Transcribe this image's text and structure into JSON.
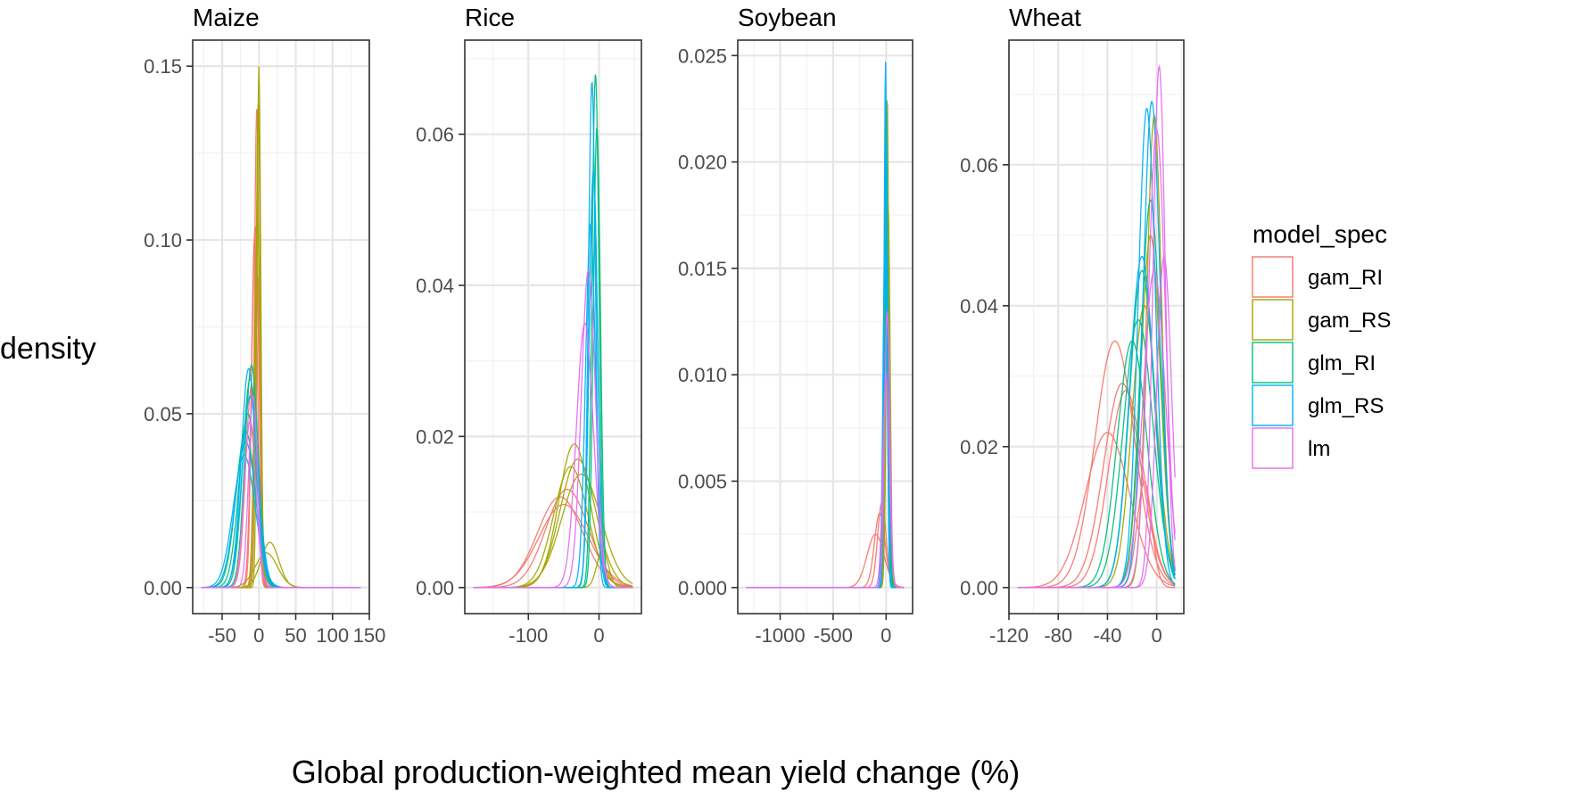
{
  "chart_data": {
    "type": "density",
    "ylabel": "density",
    "xlabel": "Global production-weighted mean yield change (%)",
    "legend": {
      "title": "model_spec",
      "position": "right",
      "entries": [
        {
          "name": "gam_RI",
          "color": "#F8766D"
        },
        {
          "name": "gam_RS",
          "color": "#A3A500"
        },
        {
          "name": "glm_RI",
          "color": "#00BF7D"
        },
        {
          "name": "glm_RS",
          "color": "#00B0F6"
        },
        {
          "name": "lm",
          "color": "#E76BF3"
        }
      ]
    },
    "panels": [
      {
        "title": "Maize",
        "xlim": [
          -90,
          150
        ],
        "ylim": [
          -0.0075,
          0.1575
        ],
        "xticks": [
          -50,
          0,
          50,
          100,
          150
        ],
        "xtick_labels": [
          "-50",
          "0",
          "50",
          "100",
          "150"
        ],
        "yticks": [
          0,
          0.05,
          0.1,
          0.15
        ],
        "ytick_labels": [
          "0.00",
          "0.05",
          "0.10",
          "0.15"
        ],
        "curves": [
          {
            "spec": "gam_RI",
            "color": "#F8766D",
            "mu": -5,
            "sd": 5,
            "peak": 0.104
          },
          {
            "spec": "gam_RI",
            "color": "#F8766D",
            "mu": -3,
            "sd": 3,
            "peak": 0.138
          },
          {
            "spec": "gam_RI",
            "color": "#F8766D",
            "mu": -6,
            "sd": 4,
            "peak": 0.1
          },
          {
            "spec": "gam_RI",
            "color": "#F8766D",
            "mu": -10,
            "sd": 8,
            "peak": 0.058
          },
          {
            "spec": "gam_RI",
            "color": "#F8766D",
            "mu": -2,
            "sd": 3,
            "peak": 0.09
          },
          {
            "spec": "gam_RS",
            "color": "#A3A500",
            "mu": 0,
            "sd": 2.5,
            "peak": 0.15
          },
          {
            "spec": "gam_RS",
            "color": "#A3A500",
            "mu": -1,
            "sd": 3,
            "peak": 0.14
          },
          {
            "spec": "gam_RS",
            "color": "#A3A500",
            "mu": -2,
            "sd": 4,
            "peak": 0.106
          },
          {
            "spec": "gam_RS",
            "color": "#A3A500",
            "mu": 15,
            "sd": 12,
            "peak": 0.013
          },
          {
            "spec": "gam_RS",
            "color": "#A3A500",
            "mu": 10,
            "sd": 15,
            "peak": 0.01
          },
          {
            "spec": "glm_RI",
            "color": "#00BF7D",
            "mu": -12,
            "sd": 10,
            "peak": 0.06
          },
          {
            "spec": "glm_RI",
            "color": "#00BF7D",
            "mu": -15,
            "sd": 12,
            "peak": 0.05
          },
          {
            "spec": "glm_RI",
            "color": "#00BF7D",
            "mu": -10,
            "sd": 9,
            "peak": 0.064
          },
          {
            "spec": "glm_RI",
            "color": "#00BF7D",
            "mu": -18,
            "sd": 13,
            "peak": 0.045
          },
          {
            "spec": "glm_RS",
            "color": "#00B0F6",
            "mu": -14,
            "sd": 10,
            "peak": 0.063
          },
          {
            "spec": "glm_RS",
            "color": "#00B0F6",
            "mu": -18,
            "sd": 14,
            "peak": 0.042
          },
          {
            "spec": "glm_RS",
            "color": "#00B0F6",
            "mu": -12,
            "sd": 11,
            "peak": 0.055
          },
          {
            "spec": "glm_RS",
            "color": "#00B0F6",
            "mu": -20,
            "sd": 15,
            "peak": 0.038
          },
          {
            "spec": "lm",
            "color": "#E76BF3",
            "mu": -8,
            "sd": 6,
            "peak": 0.055
          },
          {
            "spec": "lm",
            "color": "#E76BF3",
            "mu": -12,
            "sd": 8,
            "peak": 0.048
          }
        ]
      },
      {
        "title": "Rice",
        "xlim": [
          -190,
          60
        ],
        "ylim": [
          -0.00345,
          0.07245
        ],
        "xticks": [
          -100,
          0
        ],
        "xtick_labels": [
          "-100",
          "0"
        ],
        "yticks": [
          0,
          0.02,
          0.04,
          0.06
        ],
        "ytick_labels": [
          "0.00",
          "0.02",
          "0.04",
          "0.06"
        ],
        "curves": [
          {
            "spec": "gam_RI",
            "color": "#F8766D",
            "mu": -45,
            "sd": 30,
            "peak": 0.013
          },
          {
            "spec": "gam_RI",
            "color": "#F8766D",
            "mu": -50,
            "sd": 35,
            "peak": 0.011
          },
          {
            "spec": "gam_RI",
            "color": "#F8766D",
            "mu": -55,
            "sd": 32,
            "peak": 0.012
          },
          {
            "spec": "gam_RS",
            "color": "#A3A500",
            "mu": -35,
            "sd": 22,
            "peak": 0.019
          },
          {
            "spec": "gam_RS",
            "color": "#A3A500",
            "mu": -30,
            "sd": 25,
            "peak": 0.017
          },
          {
            "spec": "gam_RS",
            "color": "#A3A500",
            "mu": -40,
            "sd": 24,
            "peak": 0.016
          },
          {
            "spec": "gam_RS",
            "color": "#A3A500",
            "mu": -25,
            "sd": 28,
            "peak": 0.015
          },
          {
            "spec": "gam_RS",
            "color": "#A3A500",
            "mu": 5,
            "sd": 8,
            "peak": 0.005
          },
          {
            "spec": "glm_RI",
            "color": "#00BF7D",
            "mu": -5,
            "sd": 5,
            "peak": 0.068
          },
          {
            "spec": "glm_RI",
            "color": "#00BF7D",
            "mu": -3,
            "sd": 5,
            "peak": 0.061
          },
          {
            "spec": "glm_RI",
            "color": "#00BF7D",
            "mu": -8,
            "sd": 6,
            "peak": 0.055
          },
          {
            "spec": "glm_RS",
            "color": "#00B0F6",
            "mu": -10,
            "sd": 5,
            "peak": 0.067
          },
          {
            "spec": "glm_RS",
            "color": "#00B0F6",
            "mu": -8,
            "sd": 6,
            "peak": 0.055
          },
          {
            "spec": "glm_RS",
            "color": "#00B0F6",
            "mu": -12,
            "sd": 7,
            "peak": 0.048
          },
          {
            "spec": "lm",
            "color": "#E76BF3",
            "mu": -15,
            "sd": 10,
            "peak": 0.042
          },
          {
            "spec": "lm",
            "color": "#E76BF3",
            "mu": -20,
            "sd": 12,
            "peak": 0.035
          }
        ]
      },
      {
        "title": "Soybean",
        "xlim": [
          -1400,
          250
        ],
        "ylim": [
          -0.001225,
          0.025725
        ],
        "xticks": [
          -1000,
          -500,
          0
        ],
        "xtick_labels": [
          "-1000",
          "-500",
          "0"
        ],
        "yticks": [
          0,
          0.005,
          0.01,
          0.015,
          0.02,
          0.025
        ],
        "ytick_labels": [
          "0.000",
          "0.005",
          "0.010",
          "0.015",
          "0.020",
          "0.025"
        ],
        "curves": [
          {
            "spec": "gam_RI",
            "color": "#F8766D",
            "mu": -60,
            "sd": 50,
            "peak": 0.0035
          },
          {
            "spec": "gam_RI",
            "color": "#F8766D",
            "mu": -40,
            "sd": 40,
            "peak": 0.004
          },
          {
            "spec": "gam_RI",
            "color": "#F8766D",
            "mu": -100,
            "sd": 80,
            "peak": 0.0025
          },
          {
            "spec": "gam_RS",
            "color": "#A3A500",
            "mu": 10,
            "sd": 15,
            "peak": 0.0232
          },
          {
            "spec": "gam_RS",
            "color": "#A3A500",
            "mu": 20,
            "sd": 18,
            "peak": 0.018
          },
          {
            "spec": "gam_RS",
            "color": "#A3A500",
            "mu": 5,
            "sd": 20,
            "peak": 0.015
          },
          {
            "spec": "glm_RI",
            "color": "#00BF7D",
            "mu": 0,
            "sd": 15,
            "peak": 0.023
          },
          {
            "spec": "glm_RI",
            "color": "#00BF7D",
            "mu": -5,
            "sd": 18,
            "peak": 0.02
          },
          {
            "spec": "glm_RI",
            "color": "#00BF7D",
            "mu": 5,
            "sd": 20,
            "peak": 0.017
          },
          {
            "spec": "glm_RS",
            "color": "#00B0F6",
            "mu": -5,
            "sd": 14,
            "peak": 0.0248
          },
          {
            "spec": "glm_RS",
            "color": "#00B0F6",
            "mu": 0,
            "sd": 16,
            "peak": 0.021
          },
          {
            "spec": "glm_RS",
            "color": "#00B0F6",
            "mu": -10,
            "sd": 20,
            "peak": 0.016
          },
          {
            "spec": "lm",
            "color": "#E76BF3",
            "mu": 10,
            "sd": 25,
            "peak": 0.013
          },
          {
            "spec": "lm",
            "color": "#E76BF3",
            "mu": 0,
            "sd": 30,
            "peak": 0.01
          }
        ]
      },
      {
        "title": "Wheat",
        "xlim": [
          -120,
          22
        ],
        "ylim": [
          -0.0037,
          0.0777
        ],
        "xticks": [
          -120,
          -80,
          -40,
          0
        ],
        "xtick_labels": [
          "-120",
          "-80",
          "-40",
          "0"
        ],
        "yticks": [
          0,
          0.02,
          0.04,
          0.06
        ],
        "ytick_labels": [
          "0.00",
          "0.02",
          "0.04",
          "0.06"
        ],
        "curves": [
          {
            "spec": "gam_RI",
            "color": "#F8766D",
            "mu": -34,
            "sd": 16,
            "peak": 0.035
          },
          {
            "spec": "gam_RI",
            "color": "#F8766D",
            "mu": -28,
            "sd": 15,
            "peak": 0.029
          },
          {
            "spec": "gam_RI",
            "color": "#F8766D",
            "mu": -40,
            "sd": 18,
            "peak": 0.022
          },
          {
            "spec": "gam_RI",
            "color": "#F8766D",
            "mu": -25,
            "sd": 14,
            "peak": 0.028
          },
          {
            "spec": "gam_RI",
            "color": "#F8766D",
            "mu": -10,
            "sd": 6,
            "peak": 0.015
          },
          {
            "spec": "gam_RS",
            "color": "#A3A500",
            "mu": -2,
            "sd": 6,
            "peak": 0.067
          },
          {
            "spec": "gam_RS",
            "color": "#A3A500",
            "mu": -5,
            "sd": 8,
            "peak": 0.05
          },
          {
            "spec": "gam_RS",
            "color": "#A3A500",
            "mu": -10,
            "sd": 10,
            "peak": 0.04
          },
          {
            "spec": "glm_RI",
            "color": "#00BF7D",
            "mu": -12,
            "sd": 10,
            "peak": 0.045
          },
          {
            "spec": "glm_RI",
            "color": "#00BF7D",
            "mu": -15,
            "sd": 12,
            "peak": 0.038
          },
          {
            "spec": "glm_RI",
            "color": "#00BF7D",
            "mu": -5,
            "sd": 8,
            "peak": 0.055
          },
          {
            "spec": "glm_RI",
            "color": "#00BF7D",
            "mu": -20,
            "sd": 12,
            "peak": 0.035
          },
          {
            "spec": "glm_RS",
            "color": "#00B0F6",
            "mu": -8,
            "sd": 7,
            "peak": 0.068
          },
          {
            "spec": "glm_RS",
            "color": "#00B0F6",
            "mu": -4,
            "sd": 7,
            "peak": 0.069
          },
          {
            "spec": "glm_RS",
            "color": "#00B0F6",
            "mu": -12,
            "sd": 10,
            "peak": 0.047
          },
          {
            "spec": "lm",
            "color": "#E76BF3",
            "mu": 2,
            "sd": 5,
            "peak": 0.074
          },
          {
            "spec": "lm",
            "color": "#E76BF3",
            "mu": 0,
            "sd": 7,
            "peak": 0.065
          },
          {
            "spec": "lm",
            "color": "#E76BF3",
            "mu": 6,
            "sd": 6,
            "peak": 0.047
          },
          {
            "spec": "lm",
            "color": "#E76BF3",
            "mu": -2,
            "sd": 9,
            "peak": 0.045
          }
        ]
      }
    ]
  }
}
